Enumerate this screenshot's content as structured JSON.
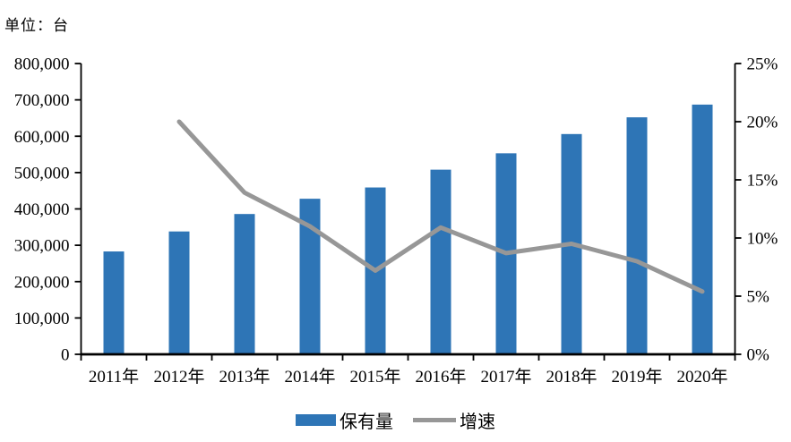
{
  "header": {
    "unit_label": "单位：台"
  },
  "chart_data": {
    "type": "bar+line",
    "categories": [
      "2011年",
      "2012年",
      "2013年",
      "2014年",
      "2015年",
      "2016年",
      "2017年",
      "2018年",
      "2019年",
      "2020年"
    ],
    "series": [
      {
        "name": "保有量",
        "type": "bar",
        "axis": "left",
        "color": "#2E75B6",
        "values": [
          283000,
          338000,
          386000,
          428000,
          459000,
          508000,
          553000,
          606000,
          652000,
          687000
        ]
      },
      {
        "name": "增速",
        "type": "line",
        "axis": "right",
        "unit": "%",
        "color": "#979797",
        "values": [
          null,
          20.0,
          13.9,
          11.0,
          7.2,
          10.9,
          8.7,
          9.5,
          8.0,
          5.4
        ]
      }
    ],
    "left_axis": {
      "min": 0,
      "max": 800000,
      "tick_step": 100000,
      "tick_labels": [
        "0",
        "100,000",
        "200,000",
        "300,000",
        "400,000",
        "500,000",
        "600,000",
        "700,000",
        "800,000"
      ]
    },
    "right_axis": {
      "min": 0,
      "max": 25,
      "tick_step": 5,
      "tick_labels": [
        "0%",
        "5%",
        "10%",
        "15%",
        "20%",
        "25%"
      ]
    },
    "grid": false,
    "legend_position": "bottom",
    "axis_color": "#000000"
  },
  "legend": {
    "items": [
      {
        "label": "保有量",
        "marker": "bar-swatch",
        "color": "#2E75B6"
      },
      {
        "label": "增速",
        "marker": "line-swatch",
        "color": "#979797"
      }
    ]
  }
}
